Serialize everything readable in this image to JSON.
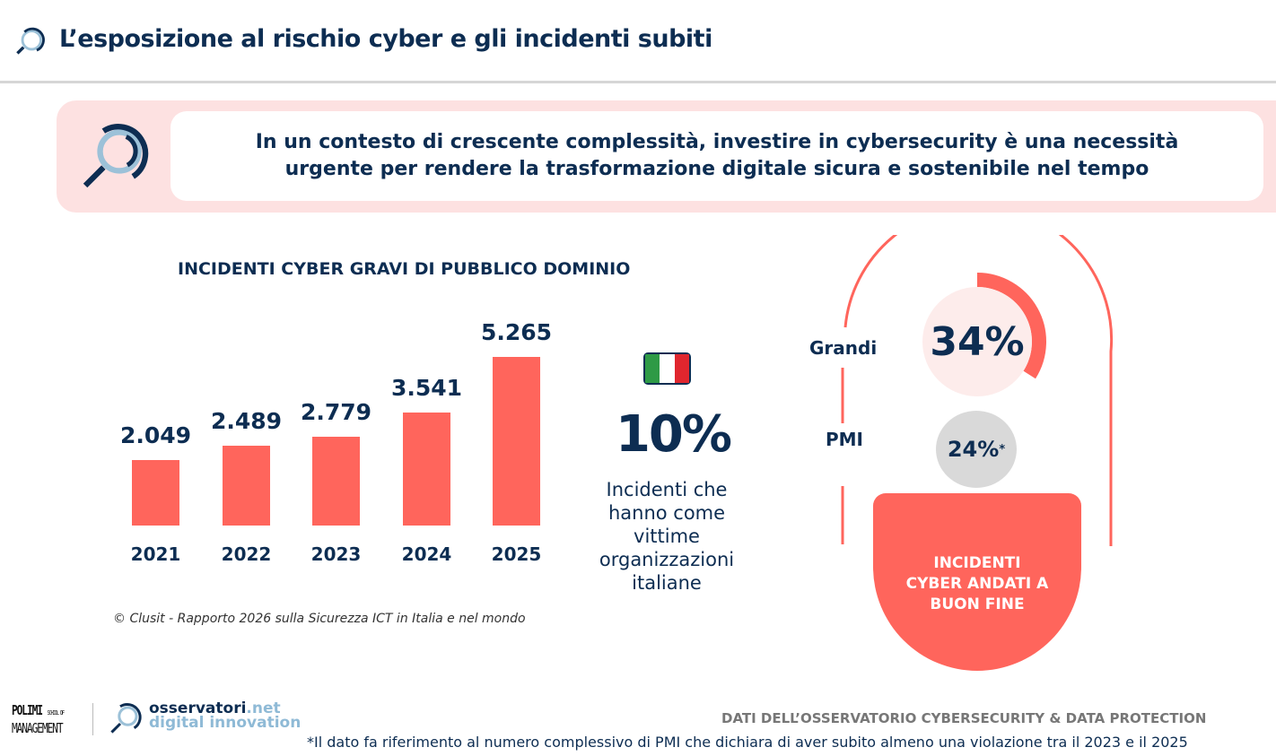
{
  "header": {
    "title": "L’esposizione al rischio cyber e gli incidenti subiti",
    "icon": "magnifier-icon"
  },
  "banner": {
    "line1": "In un contesto di crescente complessità, investire in cybersecurity è una necessità",
    "line2": "urgente per rendere la trasformazione digitale sicura e sostenibile nel tempo"
  },
  "chart_data": {
    "type": "bar",
    "title": "INCIDENTI CYBER GRAVI DI PUBBLICO DOMINIO",
    "categories": [
      "2021",
      "2022",
      "2023",
      "2024",
      "2025"
    ],
    "values": [
      2049,
      2489,
      2779,
      3541,
      5265
    ],
    "value_labels": [
      "2.049",
      "2.489",
      "2.779",
      "3.541",
      "5.265"
    ],
    "ylim": [
      0,
      5265
    ],
    "grid": false,
    "bar_color": "#ff655c",
    "source": "© Clusit - Rapporto 2026 sulla Sicurezza ICT in Italia e nel mondo"
  },
  "italy": {
    "flag_icon": "italy-flag-icon",
    "percent": "10%",
    "desc": [
      "Incidenti che",
      "hanno come",
      "vittime",
      "organizzazioni",
      "italiane"
    ]
  },
  "success": {
    "grandi_label": "Grandi",
    "grandi_value": "34%",
    "grandi_fraction": 0.34,
    "pmi_label": "PMI",
    "pmi_value": "24%",
    "pmi_mark": "*",
    "box": [
      "INCIDENTI",
      "CYBER ANDATI A",
      "BUON FINE"
    ],
    "accent": "#ff655c"
  },
  "footer": {
    "polimi": [
      "POLIMI",
      "SCHOOL OF",
      "MANAGEMENT"
    ],
    "osservatori": [
      "osservatori",
      ".net",
      "digital innovation"
    ],
    "observatory": "DATI DELL’OSSERVATORIO CYBERSECURITY & DATA PROTECTION",
    "note": "*Il dato fa riferimento al numero complessivo di PMI che dichiara di aver subito almeno una violazione tra il 2023 e il 2025"
  }
}
